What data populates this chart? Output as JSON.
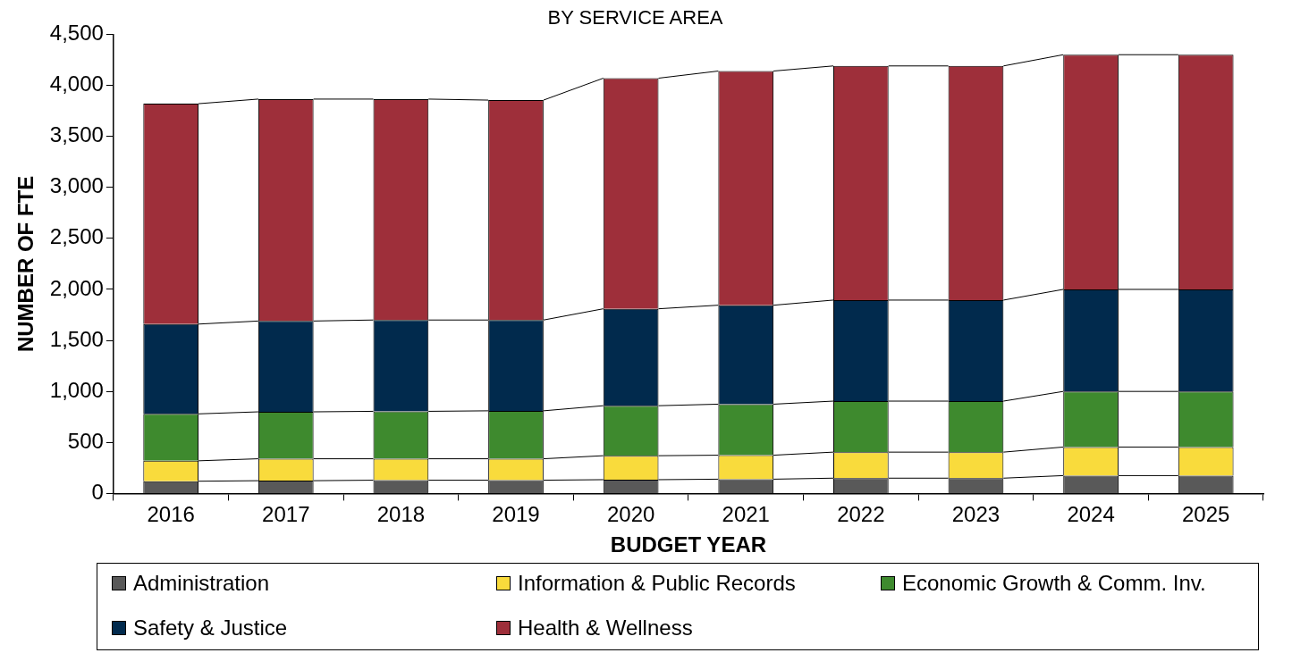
{
  "chart_data": {
    "type": "bar",
    "title": "BY SERVICE AREA",
    "xlabel": "BUDGET YEAR",
    "ylabel": "NUMBER OF FTE",
    "stacked": true,
    "legend": "bottom",
    "grid": false,
    "categories": [
      "2016",
      "2017",
      "2018",
      "2019",
      "2020",
      "2021",
      "2022",
      "2023",
      "2024",
      "2025"
    ],
    "series": [
      {
        "name": "Administration",
        "color": "#595959",
        "values": [
          120,
          125,
          130,
          130,
          135,
          140,
          150,
          150,
          175,
          175
        ]
      },
      {
        "name": "Information & Public Records",
        "color": "#f9db3c",
        "values": [
          200,
          215,
          210,
          210,
          235,
          235,
          255,
          255,
          280,
          280
        ]
      },
      {
        "name": "Economic Growth & Comm. Inv.",
        "color": "#3e8a2e",
        "values": [
          460,
          460,
          465,
          470,
          490,
          500,
          500,
          500,
          545,
          545
        ]
      },
      {
        "name": "Safety & Justice",
        "color": "#012a4d",
        "values": [
          880,
          890,
          895,
          890,
          950,
          970,
          990,
          990,
          1000,
          1000
        ]
      },
      {
        "name": "Health & Wellness",
        "color": "#9e2f3a",
        "values": [
          2160,
          2175,
          2165,
          2155,
          2260,
          2295,
          2295,
          2295,
          2300,
          2300
        ]
      }
    ],
    "ylim": [
      0,
      4500
    ],
    "yticks": [
      0,
      {
        "value": 500,
        "label": "500"
      },
      {
        "value": 1000,
        "label": "1,000"
      },
      {
        "value": 1500,
        "label": "1,500"
      },
      {
        "value": 2000,
        "label": "2,000"
      },
      {
        "value": 2500,
        "label": "2,500"
      },
      {
        "value": 3000,
        "label": "3,000"
      },
      {
        "value": 3500,
        "label": "3,500"
      },
      {
        "value": 4000,
        "label": "4,000"
      },
      {
        "value": 4500,
        "label": "4,500"
      }
    ]
  }
}
